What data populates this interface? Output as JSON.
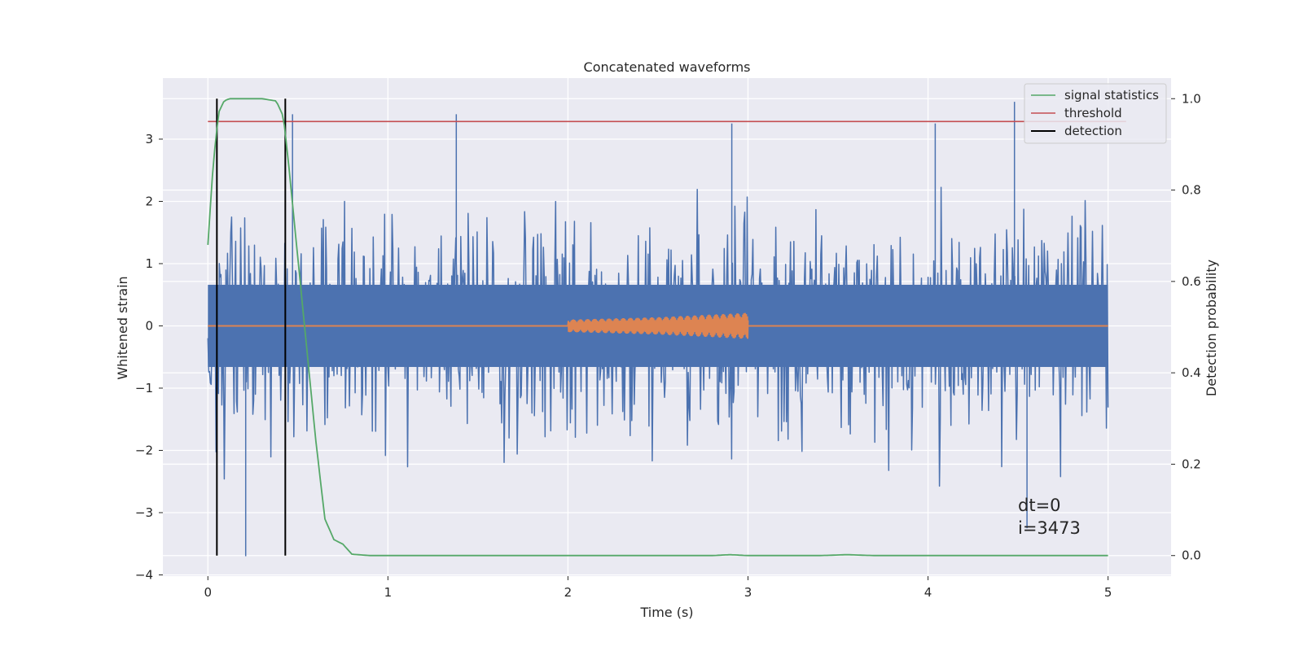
{
  "chart_data": {
    "type": "line",
    "title": "Concatenated waveforms",
    "xlabel": "Time (s)",
    "ylabel_left": "Whitened strain",
    "ylabel_right": "Detection probability",
    "xlim": [
      -0.25,
      5.35
    ],
    "ylim_left": [
      -4.02,
      3.98
    ],
    "ylim_right": [
      -0.045,
      1.045
    ],
    "xticks": [
      0,
      1,
      2,
      3,
      4,
      5
    ],
    "yticks_left": [
      -4,
      -3,
      -2,
      -1,
      0,
      1,
      2,
      3
    ],
    "yticks_right": [
      0.0,
      0.2,
      0.4,
      0.6,
      0.8,
      1.0
    ],
    "grid": true,
    "legend_position": "top-right",
    "colors": {
      "strain": "#4c72b0",
      "injected_signal": "#dd8452",
      "signal_statistics": "#55a868",
      "threshold": "#c44e52",
      "detection": "#000000",
      "plot_background": "#eaeaf2",
      "grid": "#ffffff"
    },
    "series": [
      {
        "name": "",
        "axis": "left",
        "role": "whitened-strain-noise",
        "x_range": [
          0,
          5
        ],
        "typical_envelope": [
          -2.0,
          2.0
        ],
        "max": 3.6,
        "min": -3.7,
        "notable_peaks": [
          {
            "x": 0.47,
            "y": 3.4
          },
          {
            "x": 1.38,
            "y": 3.4
          },
          {
            "x": 2.91,
            "y": 3.25
          },
          {
            "x": 4.04,
            "y": 3.25
          },
          {
            "x": 4.48,
            "y": 3.6
          },
          {
            "x": 0.21,
            "y": -3.7
          },
          {
            "x": 4.55,
            "y": -3.25
          }
        ]
      },
      {
        "name": "",
        "axis": "left",
        "role": "injected-chirp",
        "x": [
          0,
          2.0,
          2.5,
          3.0,
          5.0
        ],
        "amplitude": [
          0.0,
          0.1,
          0.14,
          0.21,
          0.0
        ]
      },
      {
        "name": "signal statistics",
        "axis": "right",
        "x": [
          0.0,
          0.03,
          0.06,
          0.09,
          0.12,
          0.2,
          0.3,
          0.38,
          0.42,
          0.45,
          0.5,
          0.55,
          0.6,
          0.65,
          0.7,
          0.75,
          0.8,
          0.9,
          2.8,
          2.9,
          3.0,
          3.4,
          3.55,
          3.7,
          5.0
        ],
        "values": [
          0.68,
          0.86,
          0.97,
          0.995,
          1.0,
          1.0,
          1.0,
          0.995,
          0.96,
          0.85,
          0.65,
          0.45,
          0.25,
          0.08,
          0.035,
          0.025,
          0.003,
          0.0,
          0.0,
          0.002,
          0.0,
          0.0,
          0.002,
          0.0,
          0.0
        ]
      },
      {
        "name": "threshold",
        "axis": "right",
        "x": [
          0,
          5.1
        ],
        "values": [
          0.95,
          0.95
        ]
      },
      {
        "name": "detection",
        "axis": "right",
        "vertical_lines_x": [
          0.05,
          0.43
        ],
        "y_range": [
          0.0,
          1.0
        ]
      }
    ],
    "annotations": [
      "dt=0",
      "i=3473"
    ]
  }
}
